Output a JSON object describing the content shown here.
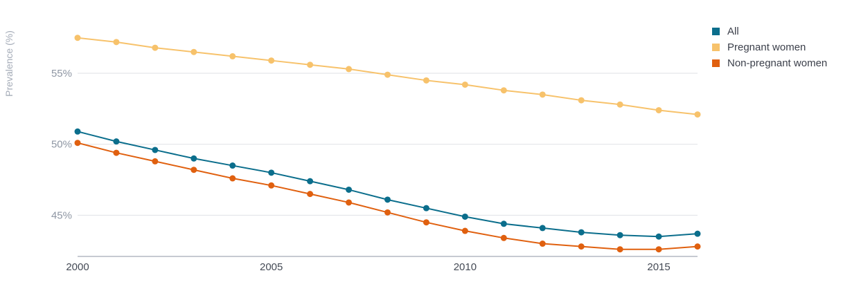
{
  "chart_data": {
    "type": "line",
    "ylabel": "Prevalence (%)",
    "xlabel": "",
    "x": [
      2000,
      2001,
      2002,
      2003,
      2004,
      2005,
      2006,
      2007,
      2008,
      2009,
      2010,
      2011,
      2012,
      2013,
      2014,
      2015,
      2016
    ],
    "x_ticks": [
      2000,
      2005,
      2010,
      2015
    ],
    "y_ticks": [
      45,
      50,
      55
    ],
    "y_tick_suffix": "%",
    "ylim": [
      42.1,
      58.8
    ],
    "grid": true,
    "legend_position": "top-right",
    "series": [
      {
        "name": "All",
        "color": "#0b6e8c",
        "values": [
          50.9,
          50.2,
          49.6,
          49.0,
          48.5,
          48.0,
          47.4,
          46.8,
          46.1,
          45.5,
          44.9,
          44.4,
          44.1,
          43.8,
          43.6,
          43.5,
          43.7
        ]
      },
      {
        "name": "Pregnant women",
        "color": "#f7c26b",
        "values": [
          57.5,
          57.2,
          56.8,
          56.5,
          56.2,
          55.9,
          55.6,
          55.3,
          54.9,
          54.5,
          54.2,
          53.8,
          53.5,
          53.1,
          52.8,
          52.4,
          52.1
        ]
      },
      {
        "name": "Non-pregnant women",
        "color": "#e0600f",
        "values": [
          50.1,
          49.4,
          48.8,
          48.2,
          47.6,
          47.1,
          46.5,
          45.9,
          45.2,
          44.5,
          43.9,
          43.4,
          43.0,
          42.8,
          42.6,
          42.6,
          42.8
        ]
      }
    ]
  }
}
